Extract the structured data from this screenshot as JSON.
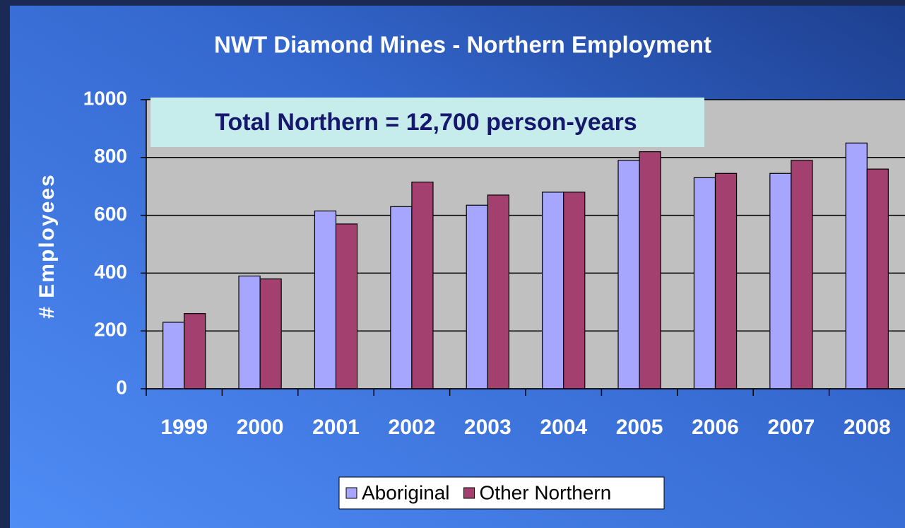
{
  "chart_data": {
    "type": "bar",
    "title": "NWT Diamond Mines - Northern Employment",
    "annotation": "Total Northern = 12,700 person-years",
    "y_label": "# Employees",
    "categories": [
      "1999",
      "2000",
      "2001",
      "2002",
      "2003",
      "2004",
      "2005",
      "2006",
      "2007",
      "2008"
    ],
    "series": [
      {
        "name": "Aboriginal",
        "color": "#a6a6ff",
        "values": [
          230,
          390,
          615,
          630,
          635,
          680,
          790,
          730,
          745,
          850
        ]
      },
      {
        "name": "Other Northern",
        "color": "#a3406f",
        "values": [
          260,
          380,
          570,
          715,
          670,
          680,
          820,
          745,
          790,
          760
        ]
      }
    ],
    "ylim": [
      0,
      1000
    ],
    "yticks": [
      0,
      200,
      400,
      600,
      800,
      1000
    ],
    "grid": true,
    "legend": "bottom"
  }
}
